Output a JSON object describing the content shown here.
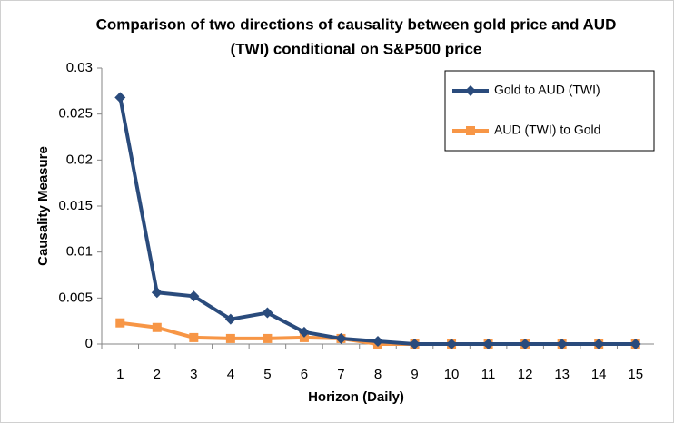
{
  "chart_data": {
    "type": "line",
    "title": [
      "Comparison of two directions of causality between gold price and AUD",
      "(TWI) conditional on S&P500 price"
    ],
    "x_label": "Horizon (Daily)",
    "y_label": "Causality Measure",
    "categories": [
      "1",
      "2",
      "3",
      "4",
      "5",
      "6",
      "7",
      "8",
      "9",
      "10",
      "11",
      "12",
      "13",
      "14",
      "15"
    ],
    "series": [
      {
        "name": "Gold to AUD (TWI)",
        "color": "#2a4b7c",
        "marker": "diamond",
        "values": [
          0.0268,
          0.0056,
          0.0052,
          0.0027,
          0.0034,
          0.0013,
          0.0006,
          0.0003,
          0,
          0,
          0,
          0,
          0,
          0,
          0
        ]
      },
      {
        "name": "AUD (TWI) to Gold",
        "color": "#f79646",
        "marker": "square",
        "values": [
          0.0023,
          0.0018,
          0.0007,
          0.0006,
          0.0006,
          0.0007,
          0.0006,
          0,
          0,
          0,
          0,
          0,
          0,
          0,
          0
        ]
      }
    ],
    "ylim": [
      0,
      0.03
    ],
    "yticks": [
      0,
      0.005,
      0.01,
      0.015,
      0.02,
      0.025,
      0.03
    ],
    "grid": false,
    "legend": "upper right"
  }
}
